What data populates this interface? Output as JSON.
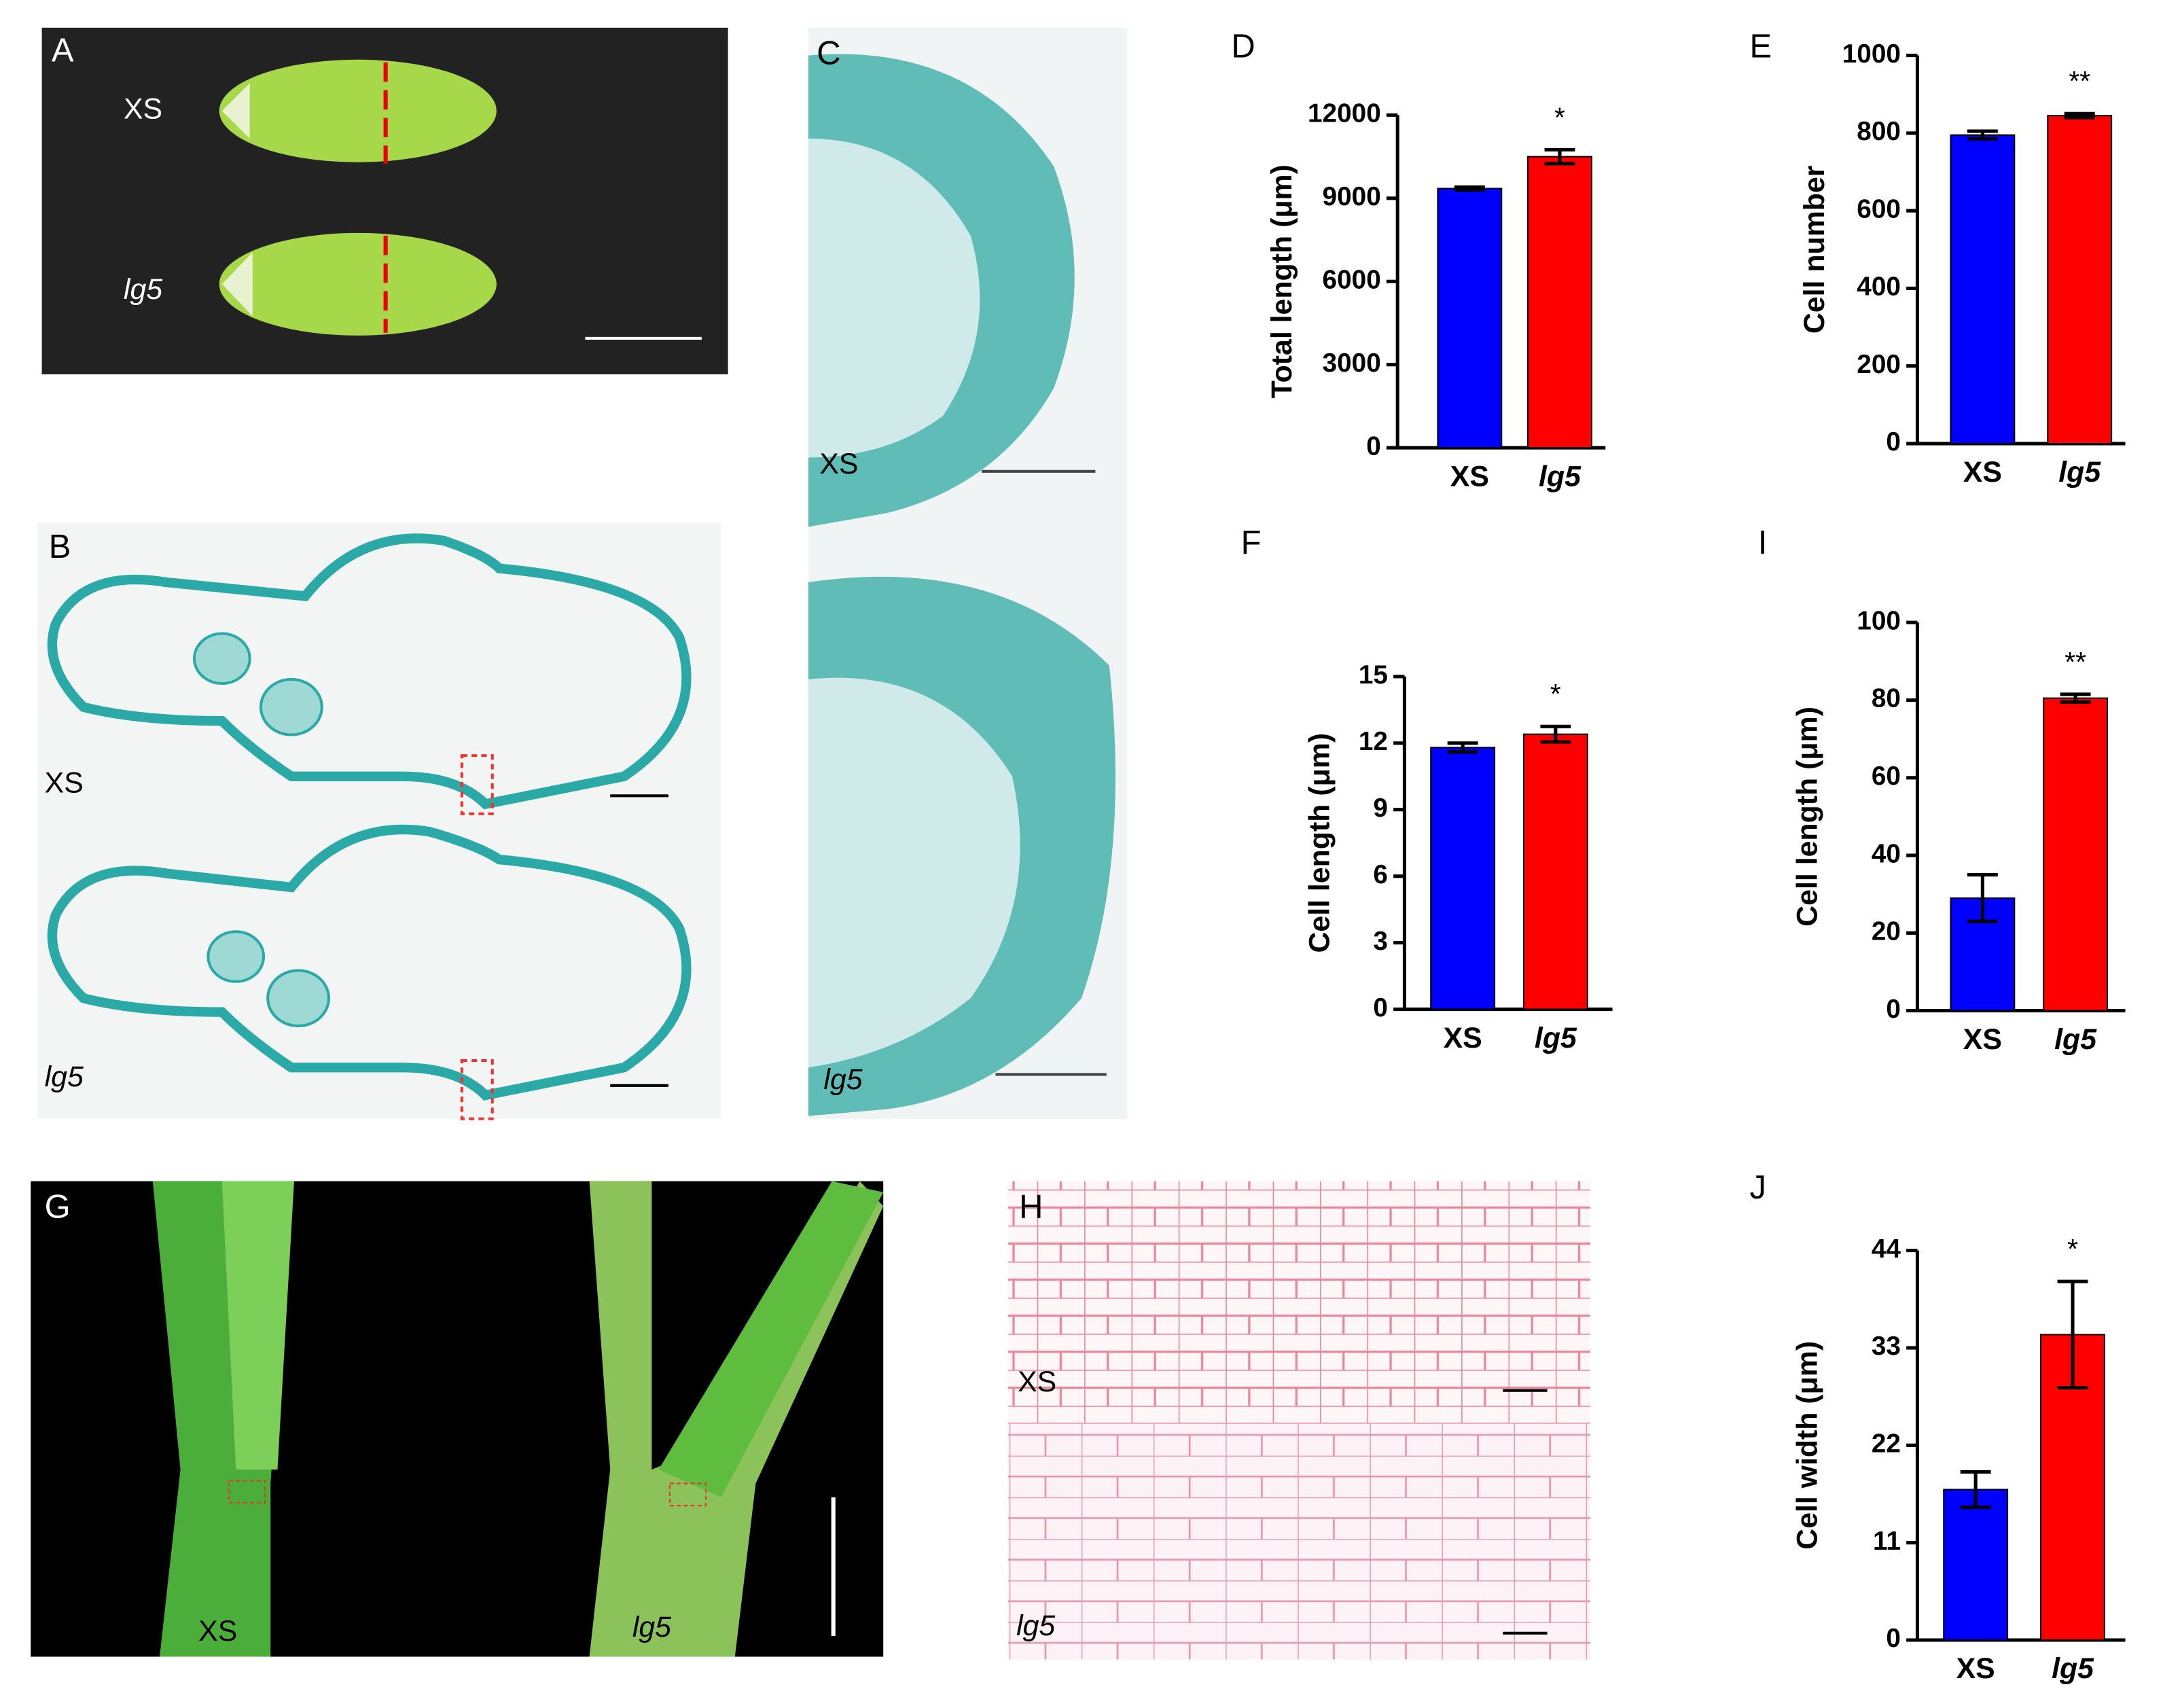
{
  "photo_panels": [
    {
      "label": "A",
      "samples": [
        "XS",
        "lg5"
      ]
    },
    {
      "label": "B",
      "samples": [
        "XS",
        "lg5"
      ]
    },
    {
      "label": "C",
      "samples": [
        "XS",
        "lg5"
      ]
    },
    {
      "label": "G",
      "samples": [
        "XS",
        "lg5"
      ]
    },
    {
      "label": "H",
      "samples": [
        "XS",
        "lg5"
      ]
    }
  ],
  "chart_data": [
    {
      "type": "bar",
      "panel_label": "D",
      "y_label": "Total length (μm)",
      "categories": [
        "XS",
        "lg5"
      ],
      "values": [
        9350,
        10500
      ],
      "errors": [
        50,
        250
      ],
      "colors": [
        "#0000ff",
        "#ff0000"
      ],
      "significance": "*",
      "ylim": [
        0,
        12000
      ],
      "yticks": [
        0,
        3000,
        6000,
        9000,
        12000
      ]
    },
    {
      "type": "bar",
      "panel_label": "E",
      "y_label": "Cell number",
      "categories": [
        "XS",
        "lg5"
      ],
      "values": [
        795,
        845
      ],
      "errors": [
        10,
        5
      ],
      "colors": [
        "#0000ff",
        "#ff0000"
      ],
      "significance": "**",
      "ylim": [
        0,
        1000
      ],
      "yticks": [
        0,
        200,
        400,
        600,
        800,
        1000
      ]
    },
    {
      "type": "bar",
      "panel_label": "F",
      "y_label": "Cell length (μm)",
      "categories": [
        "XS",
        "lg5"
      ],
      "values": [
        11.8,
        12.4
      ],
      "errors": [
        0.2,
        0.35
      ],
      "colors": [
        "#0000ff",
        "#ff0000"
      ],
      "significance": "*",
      "ylim": [
        0,
        15
      ],
      "yticks": [
        0,
        3,
        6,
        9,
        12,
        15
      ]
    },
    {
      "type": "bar",
      "panel_label": "I",
      "y_label": "Cell length (μm)",
      "categories": [
        "XS",
        "lg5"
      ],
      "values": [
        29,
        80.5
      ],
      "errors": [
        6,
        1
      ],
      "colors": [
        "#0000ff",
        "#ff0000"
      ],
      "significance": "**",
      "ylim": [
        0,
        100
      ],
      "yticks": [
        0,
        20,
        40,
        60,
        80,
        100
      ]
    },
    {
      "type": "bar",
      "panel_label": "J",
      "y_label": "Cell width (μm)",
      "categories": [
        "XS",
        "lg5"
      ],
      "values": [
        17,
        34.5
      ],
      "errors": [
        2,
        6
      ],
      "colors": [
        "#0000ff",
        "#ff0000"
      ],
      "significance": "*",
      "ylim": [
        0,
        44
      ],
      "yticks": [
        0,
        11,
        22,
        33,
        44
      ]
    }
  ]
}
